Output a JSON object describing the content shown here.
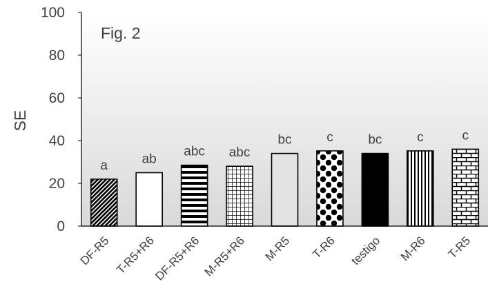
{
  "chart_data": {
    "type": "bar",
    "annotation": "Fig. 2",
    "ylabel": "SE",
    "xlabel": "",
    "ylim": [
      0,
      100
    ],
    "yticks": [
      0,
      20,
      40,
      60,
      80,
      100
    ],
    "grid": false,
    "categories": [
      "DF-R5",
      "T-R5+R6",
      "DF-R5+R6",
      "M-R5+R6",
      "M-R5",
      "T-R6",
      "testigo",
      "M-R6",
      "T-R5"
    ],
    "values": [
      22,
      25,
      28.5,
      28,
      34,
      35.2,
      34,
      35.2,
      36
    ],
    "letters": [
      "a",
      "ab",
      "abc",
      "abc",
      "bc",
      "c",
      "bc",
      "c",
      "c"
    ],
    "patterns": [
      "diagonal-stripes",
      "white",
      "horizontal-stripes",
      "grid",
      "light-gray",
      "checker-dots",
      "black",
      "vertical-stripes",
      "bricks"
    ]
  }
}
